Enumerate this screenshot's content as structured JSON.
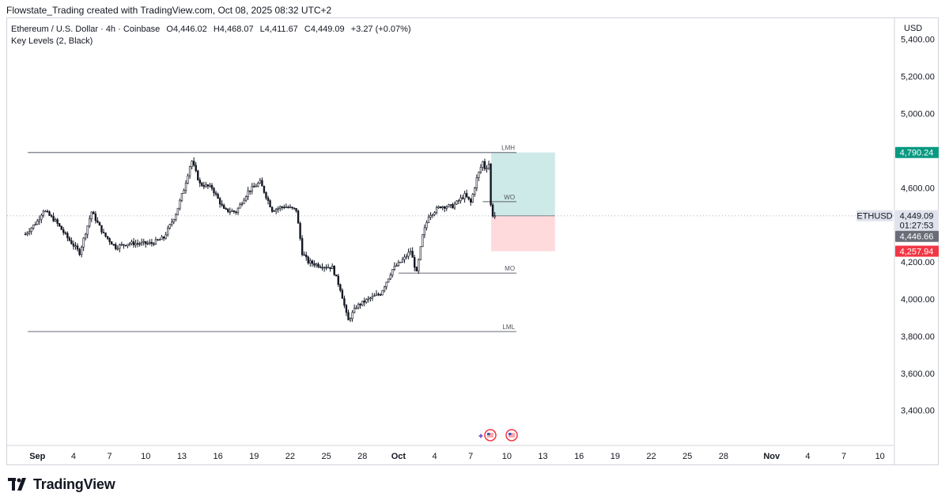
{
  "header": {
    "attribution": "Flowstate_Trading created with TradingView.com, Oct 08, 2025 08:32 UTC+2"
  },
  "legend": {
    "symbol": "Ethereum / U.S. Dollar · 4h · Coinbase",
    "open_label": "O",
    "open": "4,446.02",
    "high_label": "H",
    "high": "4,468.07",
    "low_label": "L",
    "low": "4,411.67",
    "close_label": "C",
    "close": "4,449.09",
    "change": "+3.27 (+0.07%)",
    "indicator": "Key Levels (2, Black)"
  },
  "axis": {
    "currency": "USD"
  },
  "price_tags": {
    "ticker": "ETHUSD",
    "last": "4,449.09",
    "countdown": "01:27:53",
    "bid": "4,446.66",
    "target": "4,790.24",
    "stop": "4,257.94"
  },
  "footer": {
    "brand": "TradingView"
  },
  "colors": {
    "up": "#26a69a",
    "down": "#ef5350",
    "candle": "#131722",
    "level": "#787b86"
  },
  "chart_data": {
    "type": "candlestick",
    "symbol": "ETHUSD",
    "timeframe": "4h",
    "ylim": [
      3200,
      5500
    ],
    "y_ticks": [
      "3,400.00",
      "3,600.00",
      "3,800.00",
      "4,000.00",
      "4,200.00",
      "4,600.00",
      "5,000.00",
      "5,200.00",
      "5,400.00"
    ],
    "y_tick_values": [
      3400,
      3600,
      3800,
      4000,
      4200,
      4600,
      5000,
      5200,
      5400
    ],
    "x_day_range": [
      0,
      71
    ],
    "x_ticks": [
      {
        "label": "Sep",
        "day": 1
      },
      {
        "label": "4",
        "day": 4
      },
      {
        "label": "7",
        "day": 7
      },
      {
        "label": "10",
        "day": 10
      },
      {
        "label": "13",
        "day": 13
      },
      {
        "label": "16",
        "day": 16
      },
      {
        "label": "19",
        "day": 19
      },
      {
        "label": "22",
        "day": 22
      },
      {
        "label": "25",
        "day": 25
      },
      {
        "label": "28",
        "day": 28
      },
      {
        "label": "Oct",
        "day": 31
      },
      {
        "label": "4",
        "day": 34
      },
      {
        "label": "7",
        "day": 37
      },
      {
        "label": "10",
        "day": 40
      },
      {
        "label": "13",
        "day": 43
      },
      {
        "label": "16",
        "day": 46
      },
      {
        "label": "19",
        "day": 49
      },
      {
        "label": "22",
        "day": 52
      },
      {
        "label": "25",
        "day": 55
      },
      {
        "label": "28",
        "day": 58
      },
      {
        "label": "Nov",
        "day": 62
      },
      {
        "label": "4",
        "day": 65
      },
      {
        "label": "7",
        "day": 68
      },
      {
        "label": "10",
        "day": 71
      }
    ],
    "key_levels": [
      {
        "label": "LMH",
        "price": 4790,
        "start_day": 0.2,
        "end_day": 40.8
      },
      {
        "label": "WO",
        "price": 4525,
        "start_day": 38,
        "end_day": 40.8
      },
      {
        "label": "MO",
        "price": 4140,
        "start_day": 31,
        "end_day": 40.8
      },
      {
        "label": "LML",
        "price": 3825,
        "start_day": 0.2,
        "end_day": 40.8
      }
    ],
    "position": {
      "entry": 4449.09,
      "target": 4790.24,
      "stop": 4257.94,
      "start_day": 38.7,
      "end_day": 44
    },
    "price_path": [
      [
        0,
        4350
      ],
      [
        1,
        4420
      ],
      [
        1.5,
        4480
      ],
      [
        2.5,
        4420
      ],
      [
        3.5,
        4330
      ],
      [
        4.5,
        4250
      ],
      [
        5.5,
        4470
      ],
      [
        6.5,
        4350
      ],
      [
        7.5,
        4280
      ],
      [
        8.5,
        4300
      ],
      [
        9.5,
        4300
      ],
      [
        10.5,
        4300
      ],
      [
        11.5,
        4330
      ],
      [
        12.5,
        4460
      ],
      [
        13.2,
        4600
      ],
      [
        13.8,
        4750
      ],
      [
        14.5,
        4620
      ],
      [
        15.5,
        4600
      ],
      [
        16.5,
        4480
      ],
      [
        17.5,
        4470
      ],
      [
        18.5,
        4580
      ],
      [
        19.5,
        4630
      ],
      [
        20.5,
        4480
      ],
      [
        21.5,
        4500
      ],
      [
        22.5,
        4480
      ],
      [
        23,
        4250
      ],
      [
        23.5,
        4200
      ],
      [
        24.5,
        4180
      ],
      [
        25.5,
        4170
      ],
      [
        26.2,
        4050
      ],
      [
        26.8,
        3880
      ],
      [
        27.5,
        3960
      ],
      [
        28.5,
        4000
      ],
      [
        29.5,
        4030
      ],
      [
        30.5,
        4160
      ],
      [
        31.5,
        4220
      ],
      [
        32,
        4260
      ],
      [
        32.5,
        4140
      ],
      [
        33,
        4340
      ],
      [
        33.5,
        4450
      ],
      [
        34.5,
        4500
      ],
      [
        35.5,
        4500
      ],
      [
        36.5,
        4560
      ],
      [
        37,
        4520
      ],
      [
        37.5,
        4650
      ],
      [
        38,
        4740
      ],
      [
        38.2,
        4700
      ],
      [
        38.5,
        4730
      ],
      [
        38.7,
        4460
      ],
      [
        39,
        4449.09
      ]
    ]
  }
}
